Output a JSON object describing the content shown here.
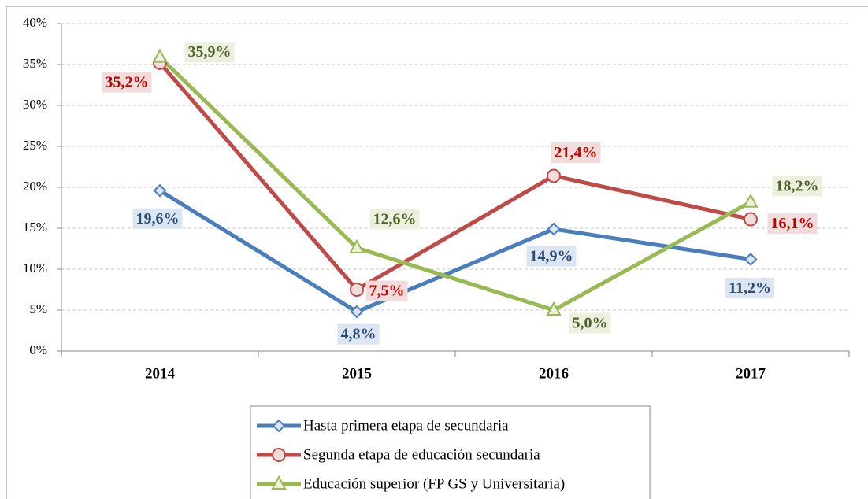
{
  "chart_data": {
    "type": "line",
    "categories": [
      "2014",
      "2015",
      "2016",
      "2017"
    ],
    "series": [
      {
        "name": "Hasta primera etapa de secundaria",
        "color": "#4a7ebb",
        "marker": "diamond",
        "values": [
          19.6,
          4.8,
          14.9,
          11.2
        ],
        "value_labels": [
          "19,6%",
          "4,8%",
          "14,9%",
          "11,2%"
        ]
      },
      {
        "name": "Segunda etapa de educación secundaria",
        "color": "#be4b48",
        "marker": "circle",
        "values": [
          35.2,
          7.5,
          21.4,
          16.1
        ],
        "value_labels": [
          "35,2%",
          "7,5%",
          "21,4%",
          "16,1%"
        ]
      },
      {
        "name": "Educación superior (FP GS y Universitaria)",
        "color": "#98b954",
        "marker": "triangle",
        "values": [
          35.9,
          12.6,
          5.0,
          18.2
        ],
        "value_labels": [
          "35,9%",
          "12,6%",
          "5,0%",
          "18,2%"
        ]
      }
    ],
    "ylim": [
      0,
      40
    ],
    "yticks": [
      {
        "value": 0,
        "label": "0%"
      },
      {
        "value": 5,
        "label": "5%"
      },
      {
        "value": 10,
        "label": "10%"
      },
      {
        "value": 15,
        "label": "15%"
      },
      {
        "value": 20,
        "label": "20%"
      },
      {
        "value": 25,
        "label": "25%"
      },
      {
        "value": 30,
        "label": "30%"
      },
      {
        "value": 35,
        "label": "35%"
      },
      {
        "value": 40,
        "label": "40%"
      }
    ],
    "grid": true,
    "legend": "bottom"
  }
}
